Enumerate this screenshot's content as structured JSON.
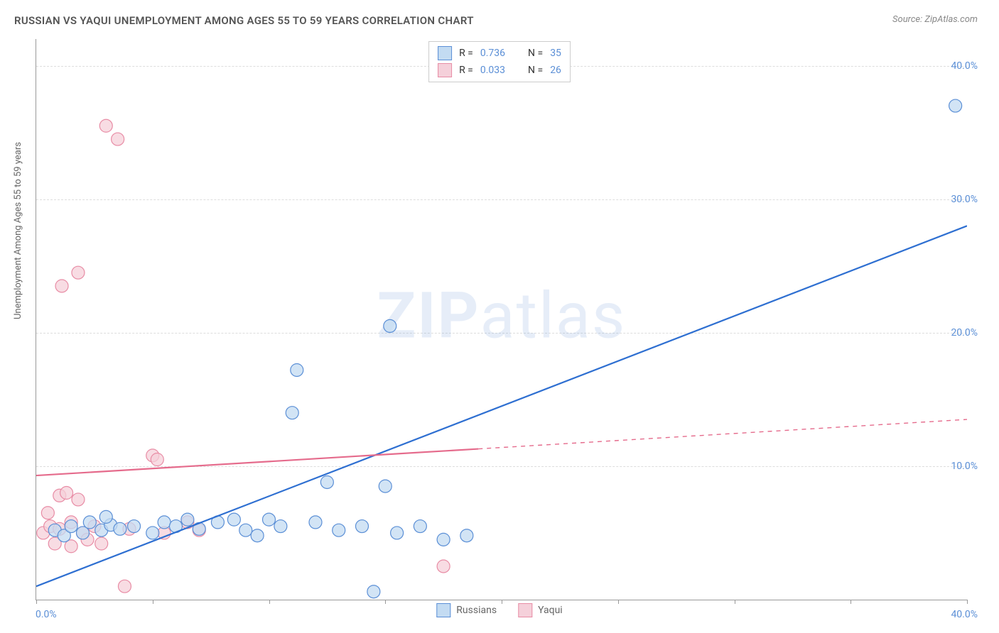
{
  "title": "RUSSIAN VS YAQUI UNEMPLOYMENT AMONG AGES 55 TO 59 YEARS CORRELATION CHART",
  "source": "Source: ZipAtlas.com",
  "watermark_main": "ZIP",
  "watermark_sub": "atlas",
  "y_axis_label": "Unemployment Among Ages 55 to 59 years",
  "chart": {
    "type": "scatter",
    "xlim": [
      0,
      40
    ],
    "ylim": [
      0,
      42
    ],
    "y_ticks": [
      10,
      20,
      30,
      40
    ],
    "y_tick_labels": [
      "10.0%",
      "20.0%",
      "30.0%",
      "40.0%"
    ],
    "x_ticks": [
      0,
      5,
      10,
      15,
      20,
      25,
      30,
      35,
      40
    ],
    "x_min_label": "0.0%",
    "x_max_label": "40.0%",
    "background_color": "#ffffff",
    "grid_color": "#dddddd",
    "marker_radius": 9,
    "marker_stroke_width": 1.2,
    "line_width": 2.2,
    "series": [
      {
        "name": "Russians",
        "fill": "#c3dbf2",
        "stroke": "#5b8fd6",
        "line_color": "#2e6fd1",
        "line_dash": "none",
        "r_value": "0.736",
        "n_value": "35",
        "trend": {
          "x1": 0,
          "y1": 1.0,
          "x2": 40,
          "y2": 28.0
        },
        "points": [
          {
            "x": 0.8,
            "y": 5.2
          },
          {
            "x": 1.2,
            "y": 4.8
          },
          {
            "x": 1.5,
            "y": 5.5
          },
          {
            "x": 2.0,
            "y": 5.0
          },
          {
            "x": 2.3,
            "y": 5.8
          },
          {
            "x": 2.8,
            "y": 5.2
          },
          {
            "x": 3.2,
            "y": 5.6
          },
          {
            "x": 3.6,
            "y": 5.3
          },
          {
            "x": 3.0,
            "y": 6.2
          },
          {
            "x": 4.2,
            "y": 5.5
          },
          {
            "x": 5.0,
            "y": 5.0
          },
          {
            "x": 5.5,
            "y": 5.8
          },
          {
            "x": 6.0,
            "y": 5.5
          },
          {
            "x": 6.5,
            "y": 6.0
          },
          {
            "x": 7.0,
            "y": 5.3
          },
          {
            "x": 7.8,
            "y": 5.8
          },
          {
            "x": 8.5,
            "y": 6.0
          },
          {
            "x": 9.0,
            "y": 5.2
          },
          {
            "x": 9.5,
            "y": 4.8
          },
          {
            "x": 10.0,
            "y": 6.0
          },
          {
            "x": 10.5,
            "y": 5.5
          },
          {
            "x": 11.0,
            "y": 14.0
          },
          {
            "x": 11.2,
            "y": 17.2
          },
          {
            "x": 12.0,
            "y": 5.8
          },
          {
            "x": 12.5,
            "y": 8.8
          },
          {
            "x": 13.0,
            "y": 5.2
          },
          {
            "x": 14.0,
            "y": 5.5
          },
          {
            "x": 14.5,
            "y": 0.6
          },
          {
            "x": 15.0,
            "y": 8.5
          },
          {
            "x": 15.5,
            "y": 5.0
          },
          {
            "x": 15.2,
            "y": 20.5
          },
          {
            "x": 16.5,
            "y": 5.5
          },
          {
            "x": 17.5,
            "y": 4.5
          },
          {
            "x": 18.5,
            "y": 4.8
          },
          {
            "x": 39.5,
            "y": 37.0
          }
        ]
      },
      {
        "name": "Yaqui",
        "fill": "#f5d0da",
        "stroke": "#e88ca5",
        "line_color": "#e56b8c",
        "line_dash_solid_until": 19,
        "r_value": "0.033",
        "n_value": "26",
        "trend": {
          "x1": 0,
          "y1": 9.3,
          "x2": 40,
          "y2": 13.5
        },
        "points": [
          {
            "x": 0.3,
            "y": 5.0
          },
          {
            "x": 0.5,
            "y": 6.5
          },
          {
            "x": 0.6,
            "y": 5.5
          },
          {
            "x": 0.8,
            "y": 4.2
          },
          {
            "x": 1.0,
            "y": 7.8
          },
          {
            "x": 1.0,
            "y": 5.3
          },
          {
            "x": 1.1,
            "y": 23.5
          },
          {
            "x": 1.3,
            "y": 8.0
          },
          {
            "x": 1.5,
            "y": 5.8
          },
          {
            "x": 1.5,
            "y": 4.0
          },
          {
            "x": 1.8,
            "y": 7.5
          },
          {
            "x": 1.8,
            "y": 24.5
          },
          {
            "x": 2.0,
            "y": 5.0
          },
          {
            "x": 2.2,
            "y": 4.5
          },
          {
            "x": 2.5,
            "y": 5.5
          },
          {
            "x": 2.8,
            "y": 4.2
          },
          {
            "x": 3.0,
            "y": 35.5
          },
          {
            "x": 3.5,
            "y": 34.5
          },
          {
            "x": 3.8,
            "y": 1.0
          },
          {
            "x": 4.0,
            "y": 5.3
          },
          {
            "x": 5.0,
            "y": 10.8
          },
          {
            "x": 5.2,
            "y": 10.5
          },
          {
            "x": 5.5,
            "y": 5.0
          },
          {
            "x": 6.5,
            "y": 5.8
          },
          {
            "x": 7.0,
            "y": 5.2
          },
          {
            "x": 17.5,
            "y": 2.5
          }
        ]
      }
    ]
  },
  "legend_top": [
    {
      "swatch_fill": "#c3dbf2",
      "swatch_stroke": "#5b8fd6",
      "r_label": "R =",
      "r": "0.736",
      "n_label": "N =",
      "n": "35"
    },
    {
      "swatch_fill": "#f5d0da",
      "swatch_stroke": "#e88ca5",
      "r_label": "R =",
      "r": "0.033",
      "n_label": "N =",
      "n": "26"
    }
  ],
  "legend_bottom": [
    {
      "swatch_fill": "#c3dbf2",
      "swatch_stroke": "#5b8fd6",
      "label": "Russians"
    },
    {
      "swatch_fill": "#f5d0da",
      "swatch_stroke": "#e88ca5",
      "label": "Yaqui"
    }
  ]
}
